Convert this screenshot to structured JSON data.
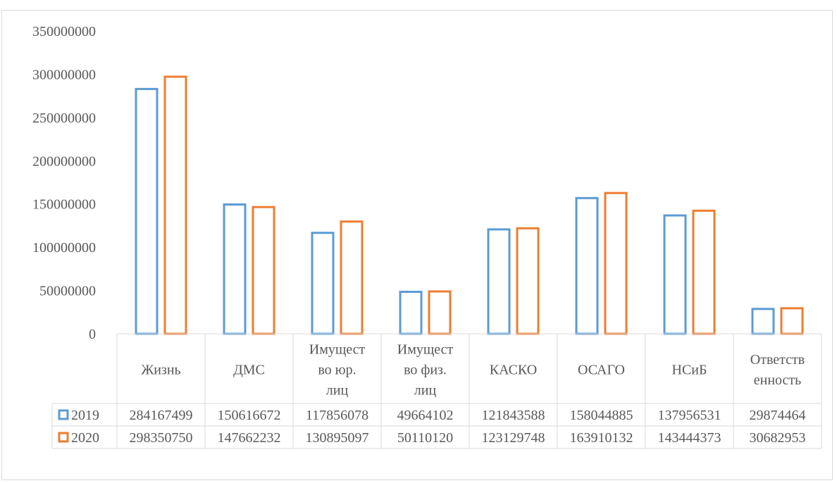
{
  "chart_data": {
    "type": "bar",
    "title": "",
    "xlabel": "",
    "ylabel": "",
    "ylim": [
      0,
      350000000
    ],
    "yticks": [
      "0",
      "50000000",
      "100000000",
      "150000000",
      "200000000",
      "250000000",
      "300000000",
      "350000000"
    ],
    "grid": false,
    "legend": "data-table",
    "categories": [
      [
        "Жизнь"
      ],
      [
        "ДМС"
      ],
      [
        "Имущест",
        "во юр.",
        "лиц"
      ],
      [
        "Имущест",
        "во физ.",
        "лиц"
      ],
      [
        "КАСКО"
      ],
      [
        "ОСАГО"
      ],
      [
        "НСиБ"
      ],
      [
        "Ответств",
        "енность"
      ]
    ],
    "series": [
      {
        "name": "2019",
        "color": "#5b9bd5",
        "values": [
          284167499,
          150616672,
          117856078,
          49664102,
          121843588,
          158044885,
          137956531,
          29874464
        ],
        "labels": [
          "284167499",
          "150616672",
          "117856078",
          "49664102",
          "121843588",
          "158044885",
          "137956531",
          "29874464"
        ]
      },
      {
        "name": "2020",
        "color": "#ed7d31",
        "values": [
          298350750,
          147662232,
          130895097,
          50110120,
          123129748,
          163910132,
          143444373,
          30682953
        ],
        "labels": [
          "298350750",
          "147662232",
          "130895097",
          "50110120",
          "123129748",
          "163910132",
          "143444373",
          "30682953"
        ]
      }
    ]
  }
}
